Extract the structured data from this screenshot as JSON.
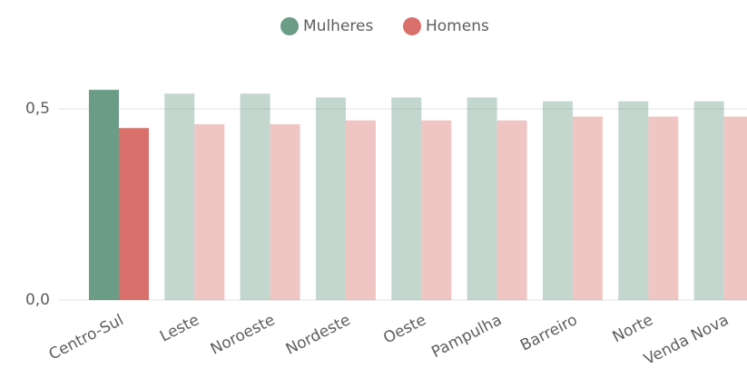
{
  "chart_data": {
    "type": "bar",
    "categories": [
      "Centro-Sul",
      "Leste",
      "Noroeste",
      "Nordeste",
      "Oeste",
      "Pampulha",
      "Barreiro",
      "Norte",
      "Venda Nova"
    ],
    "series": [
      {
        "name": "Mulheres",
        "color": "#6a9c86",
        "values": [
          0.55,
          0.54,
          0.54,
          0.53,
          0.53,
          0.53,
          0.52,
          0.52,
          0.52
        ]
      },
      {
        "name": "Homens",
        "color": "#d9706b",
        "values": [
          0.45,
          0.46,
          0.46,
          0.47,
          0.47,
          0.47,
          0.48,
          0.48,
          0.48
        ]
      }
    ],
    "highlight": "Centro-Sul",
    "ylim": [
      0,
      0.6
    ],
    "yticks": [
      {
        "value": 0,
        "label": "0,0"
      },
      {
        "value": 0.5,
        "label": "0,5"
      }
    ],
    "grid": true,
    "legend": "top"
  }
}
